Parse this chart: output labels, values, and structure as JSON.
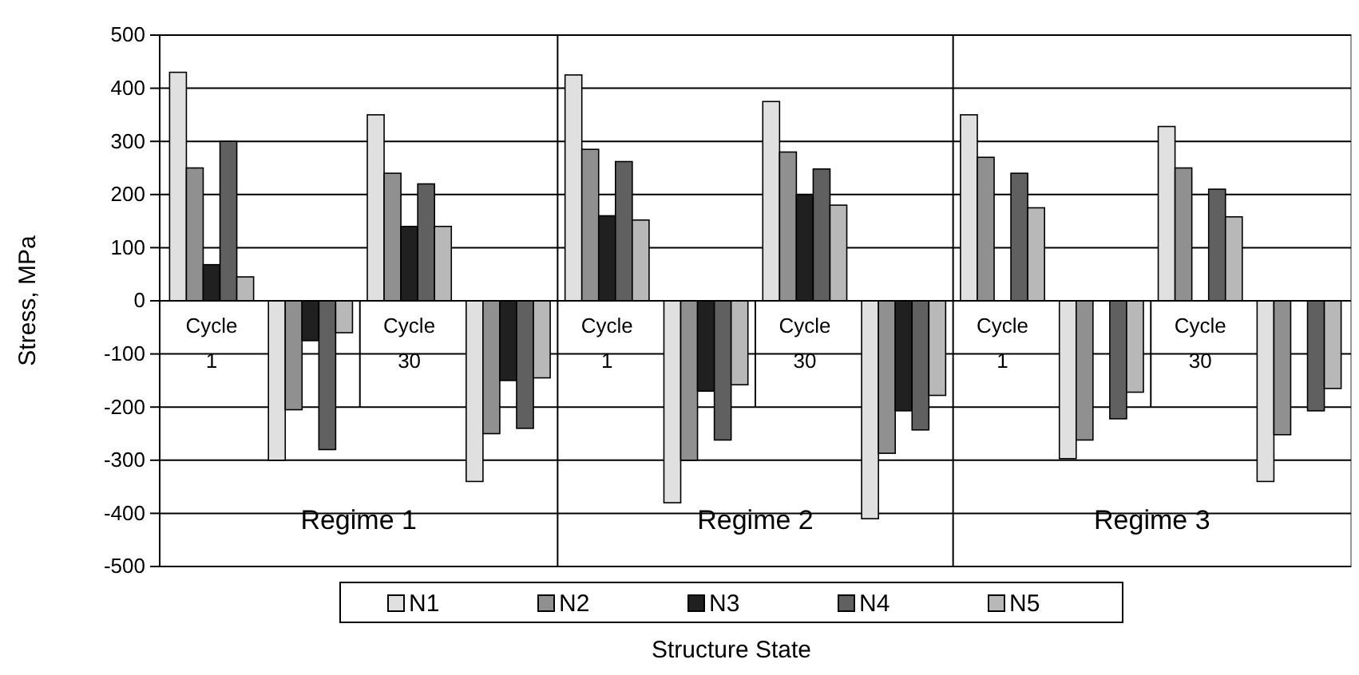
{
  "chart_data": {
    "type": "bar",
    "xlabel": "Structure State",
    "ylabel": "Stress, MPa",
    "categories": [
      "Cycle 1",
      null,
      "Cycle 30",
      null,
      "Cycle 1",
      null,
      "Cycle 30",
      null,
      "Cycle 1",
      null,
      "Cycle 30",
      null
    ],
    "series": [
      {
        "name": "N1",
        "color": "#e0e0e0",
        "values": [
          430,
          -300,
          350,
          -340,
          425,
          -380,
          375,
          -410,
          350,
          -297,
          328,
          -340
        ]
      },
      {
        "name": "N2",
        "color": "#909090",
        "values": [
          250,
          -205,
          240,
          -250,
          285,
          -300,
          280,
          -287,
          270,
          -262,
          250,
          -252
        ]
      },
      {
        "name": "N3",
        "color": "#202020",
        "values": [
          68,
          -75,
          140,
          -150,
          160,
          -170,
          200,
          -207,
          null,
          null,
          null,
          null
        ]
      },
      {
        "name": "N4",
        "color": "#606060",
        "values": [
          300,
          -280,
          220,
          -240,
          262,
          -262,
          248,
          -243,
          240,
          -222,
          210,
          -207
        ]
      },
      {
        "name": "N5",
        "color": "#b8b8b8",
        "values": [
          45,
          -60,
          140,
          -145,
          152,
          -158,
          180,
          -178,
          175,
          -172,
          158,
          -165
        ]
      }
    ],
    "annotations": [
      "Regime 1",
      "Regime 2",
      "Regime 3"
    ],
    "ylim": [
      -500,
      500
    ],
    "yticks": [
      -500,
      -400,
      -300,
      -200,
      -100,
      0,
      100,
      200,
      300,
      400,
      500
    ],
    "grid": "y",
    "legend": "bottom"
  }
}
